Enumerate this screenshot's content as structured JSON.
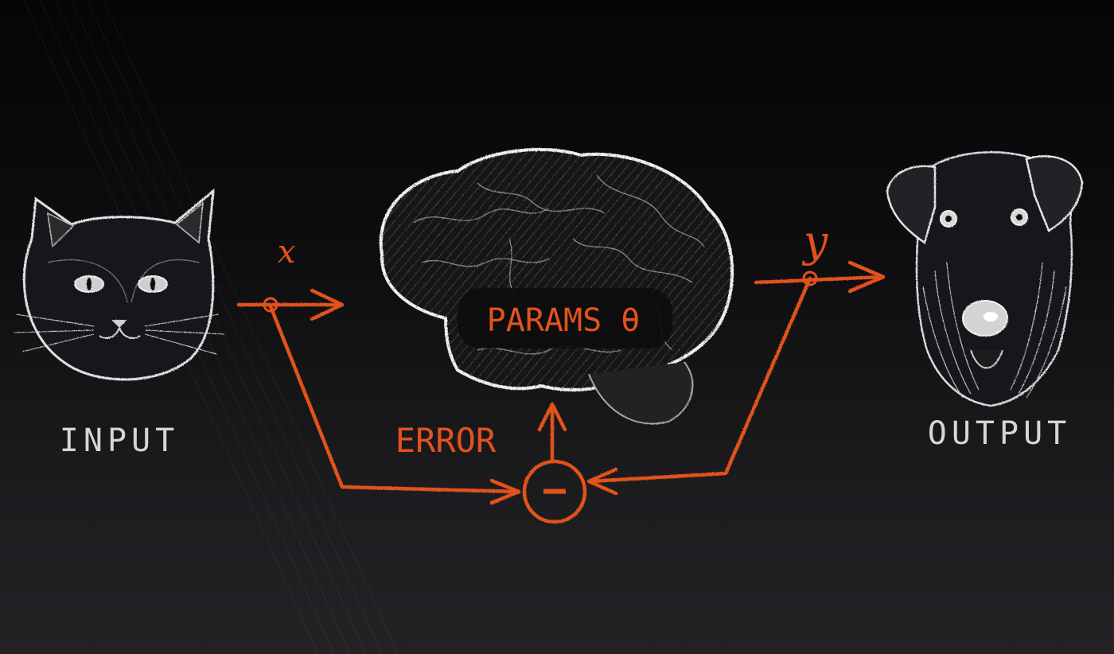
{
  "input_label": "INPUT",
  "output_label": "OUTPUT",
  "params_label": "PARAMS θ",
  "error_label": "ERROR",
  "x_label": "x",
  "y_label": "y",
  "minus_symbol": "−",
  "colors": {
    "chalk_white": "#d6d6d6",
    "chalk_orange": "#e2521f",
    "background_top": "#050506",
    "background_bottom": "#232326"
  },
  "icons": {
    "input_image": "cat-face-icon",
    "model": "brain-icon",
    "output_image": "dog-face-icon",
    "comparator": "minus-circle-icon"
  }
}
